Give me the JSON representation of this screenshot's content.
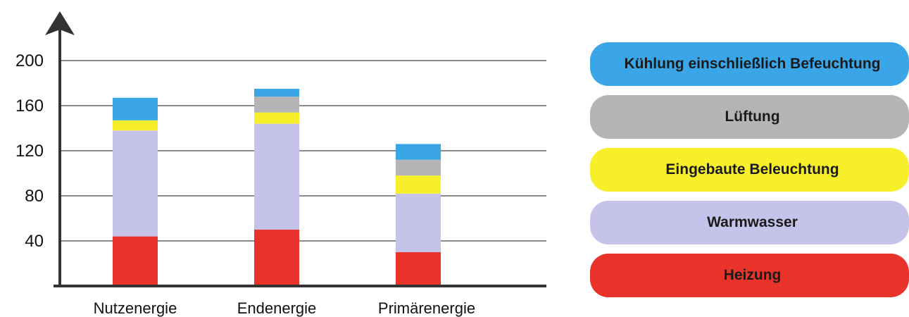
{
  "chart_data": {
    "type": "bar",
    "stacked": true,
    "categories": [
      "Nutzenergie",
      "Endenergie",
      "Primärenergie"
    ],
    "series": [
      {
        "name": "Heizung",
        "color": "#e8322a",
        "values": [
          44,
          50,
          30
        ]
      },
      {
        "name": "Warmwasser",
        "color": "#c5c3ea",
        "values": [
          94,
          94,
          52
        ]
      },
      {
        "name": "Eingebaute Beleuchtung",
        "color": "#f7ef2a",
        "values": [
          9,
          10,
          16
        ]
      },
      {
        "name": "Lüftung",
        "color": "#b5b5b7",
        "values": [
          0,
          14,
          14
        ]
      },
      {
        "name": "Kühlung einschließlich Befeuchtung",
        "color": "#3aa6e8",
        "values": [
          20,
          7,
          14
        ]
      }
    ],
    "y_ticks": [
      "40",
      "80",
      "120",
      "160",
      "200"
    ],
    "ylim": [
      0,
      220
    ],
    "grid": true,
    "legend_position": "right",
    "legend_order": [
      "Kühlung einschließlich Befeuchtung",
      "Lüftung",
      "Eingebaute Beleuchtung",
      "Warmwasser",
      "Heizung"
    ]
  }
}
